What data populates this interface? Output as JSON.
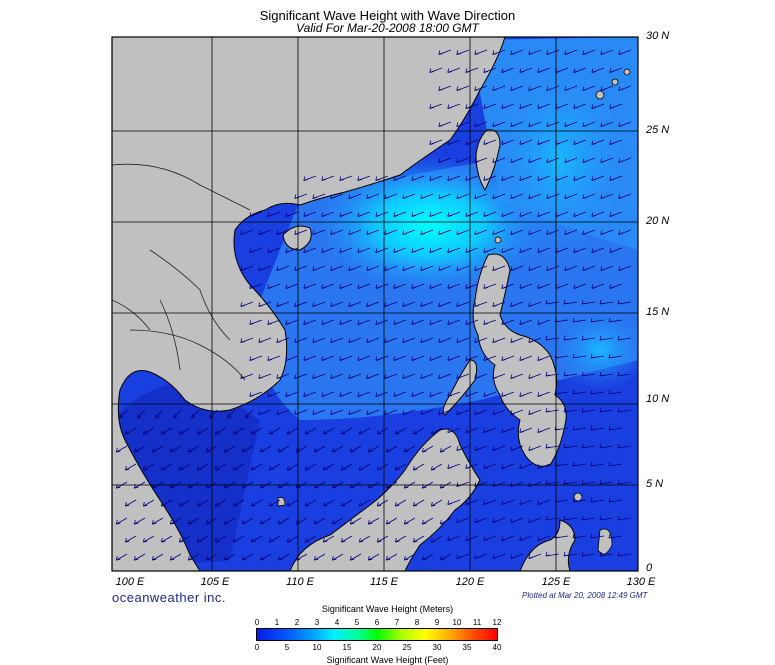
{
  "title": "Significant Wave Height with Wave Direction",
  "subtitle": "Valid For Mar-20-2008 18:00 GMT",
  "lon_labels": [
    "100 E",
    "105 E",
    "110 E",
    "115 E",
    "120 E",
    "125 E",
    "130 E"
  ],
  "lat_labels": [
    "30 N",
    "25 N",
    "20 N",
    "15 N",
    "10 N",
    "5 N",
    "0"
  ],
  "brand": "oceanweather inc.",
  "plotted": "Plotted at Mar 20, 2008 12:49 GMT",
  "colorbar": {
    "title_meters": "Significant Wave Height (Meters)",
    "title_feet": "Significant Wave Height (Feet)",
    "ticks_meters": [
      "0",
      "1",
      "2",
      "3",
      "4",
      "5",
      "6",
      "7",
      "8",
      "9",
      "10",
      "11",
      "12"
    ],
    "ticks_feet": [
      "0",
      "5",
      "10",
      "15",
      "20",
      "25",
      "30",
      "35",
      "40"
    ]
  },
  "colors": {
    "land": "#c0c0c0",
    "ocean_low": "#1a3fe0",
    "ocean_mid": "#2a80f5",
    "ocean_high": "#00e8ff",
    "bg": "#ffffff"
  }
}
